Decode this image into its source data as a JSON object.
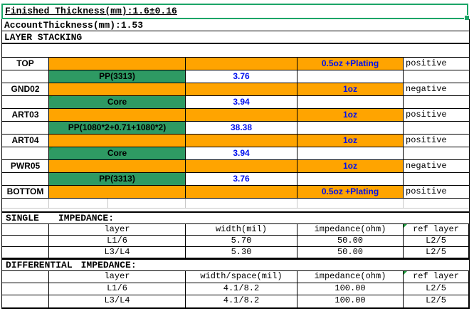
{
  "header": {
    "finished_thickness": "Finished Thickness(mm):1.6±0.16",
    "account_thickness": "AccountThickness(mm):1.53",
    "section_title": "LAYER STACKING"
  },
  "colors": {
    "copper_fill": "#FFA400",
    "dielectric_fill": "#2E9A63",
    "selection_green": "#1CA567",
    "value_blue": "#0010EE",
    "gridline_gray": "#C8C8C8"
  },
  "stackup": {
    "rows": [
      {
        "type": "copper",
        "label": "TOP",
        "copper": "0.5oz +Plating",
        "polarity": "positive"
      },
      {
        "type": "dielectric",
        "material": "PP(3313)",
        "value": "3.76",
        "note": false
      },
      {
        "type": "copper",
        "label": "GND02",
        "copper": "1oz",
        "polarity": "negative"
      },
      {
        "type": "dielectric",
        "material": "Core",
        "value": "3.94",
        "note": true
      },
      {
        "type": "copper",
        "label": "ART03",
        "copper": "1oz",
        "polarity": "positive"
      },
      {
        "type": "dielectric",
        "material": "PP(1080*2+0.71+1080*2)",
        "value": "38.38",
        "note": false
      },
      {
        "type": "copper",
        "label": "ART04",
        "copper": "1oz",
        "polarity": "positive"
      },
      {
        "type": "dielectric",
        "material": "Core",
        "value": "3.94",
        "note": true
      },
      {
        "type": "copper",
        "label": "PWR05",
        "copper": "1oz",
        "polarity": "negative"
      },
      {
        "type": "dielectric",
        "material": "PP(3313)",
        "value": "3.76",
        "note": false
      },
      {
        "type": "copper",
        "label": "BOTTOM",
        "copper": "0.5oz +Plating",
        "polarity": "positive"
      }
    ]
  },
  "single_impedance": {
    "title_prefix": "SINGLE",
    "title_label": "IMPEDANCE:",
    "ref_header_mark": true,
    "headers": [
      "layer",
      "width(mil)",
      "impedance(ohm)",
      "ref layer"
    ],
    "rows": [
      [
        "L1/6",
        "5.70",
        "50.00",
        "L2/5"
      ],
      [
        "L3/L4",
        "5.30",
        "50.00",
        "L2/5"
      ]
    ]
  },
  "differential_impedance": {
    "title_prefix": "DIFFERENTIAL",
    "title_label": "IMPEDANCE:",
    "ref_header_mark": true,
    "headers": [
      "layer",
      "width/space(mil)",
      "impedance(ohm)",
      "ref layer"
    ],
    "rows": [
      [
        "L1/6",
        "4.1/8.2",
        "100.00",
        "L2/5"
      ],
      [
        "L3/L4",
        "4.1/8.2",
        "100.00",
        "L2/5"
      ]
    ]
  }
}
